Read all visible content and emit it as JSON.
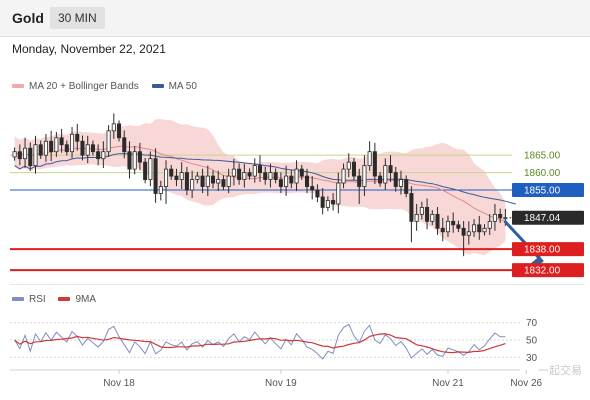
{
  "header": {
    "title": "Gold",
    "timeframe": "30 MIN"
  },
  "date": "Monday, November 22, 2021",
  "watermark": "一起交易",
  "colors": {
    "bollinger": "#f6c9c9",
    "ma20": "#e08a8a",
    "ma50": "#3c5a9a",
    "support": "#dd1f1f",
    "resistance_line": "#c9d48a",
    "pivot": "#1e5fbf",
    "current": "#2a2a2a",
    "arrow": "#2f5f9c",
    "rsi": "#7f8fbf",
    "rsi_ma": "#cc3a3a"
  },
  "chart_data": [
    {
      "type": "candlestick",
      "legend": [
        {
          "name": "MA 20 + Bollinger Bands",
          "color": "#f3a9a9"
        },
        {
          "name": "MA 50",
          "color": "#3c5a9a"
        }
      ],
      "x_labels": [
        "Nov 18",
        "Nov 19",
        "Nov 21",
        "Nov 26"
      ],
      "ylim": [
        1828,
        1882
      ],
      "levels": [
        {
          "value": 1865.0,
          "label": "1865.00",
          "kind": "resistance"
        },
        {
          "value": 1860.0,
          "label": "1860.00",
          "kind": "resistance"
        },
        {
          "value": 1855.0,
          "label": "1855.00",
          "kind": "pivot"
        },
        {
          "value": 1847.04,
          "label": "1847.04",
          "kind": "current"
        },
        {
          "value": 1838.0,
          "label": "1838.00",
          "kind": "support"
        },
        {
          "value": 1832.0,
          "label": "1832.00",
          "kind": "support"
        }
      ],
      "projection": {
        "from": [
          94,
          1847
        ],
        "to": [
          101,
          1832
        ]
      },
      "closes": [
        1866,
        1864,
        1867,
        1862,
        1868,
        1865,
        1869,
        1866,
        1870,
        1868,
        1866,
        1871,
        1869,
        1865,
        1868,
        1866,
        1864,
        1866,
        1872,
        1874,
        1870,
        1866,
        1861,
        1866,
        1863,
        1858,
        1864,
        1854,
        1856,
        1861,
        1859,
        1858,
        1860,
        1855,
        1858,
        1859,
        1856,
        1859,
        1857,
        1858,
        1856,
        1859,
        1861,
        1858,
        1860,
        1859,
        1862,
        1860,
        1858,
        1860,
        1858,
        1856,
        1859,
        1857,
        1861,
        1859,
        1856,
        1855,
        1853,
        1850,
        1852,
        1851,
        1857,
        1861,
        1863,
        1859,
        1856,
        1862,
        1866,
        1859,
        1857,
        1862,
        1860,
        1856,
        1858,
        1854,
        1846,
        1848,
        1850,
        1846,
        1848,
        1844,
        1843,
        1846,
        1845,
        1844,
        1842,
        1843,
        1845,
        1843,
        1844,
        1846,
        1848,
        1847,
        1847.04
      ]
    },
    {
      "type": "line",
      "legend": [
        {
          "name": "RSI",
          "color": "#7f8fbf"
        },
        {
          "name": "9MA",
          "color": "#cc3a3a"
        }
      ],
      "ylim": [
        20,
        80
      ],
      "y_ticks": [
        70,
        50,
        30
      ]
    }
  ]
}
